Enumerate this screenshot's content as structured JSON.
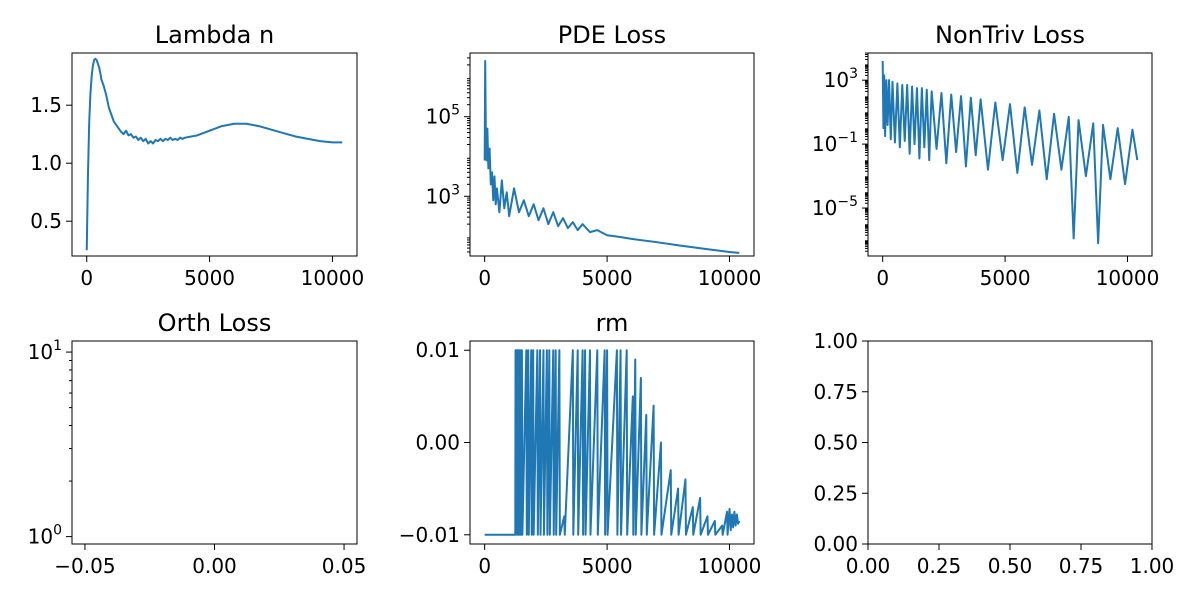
{
  "chart_data": [
    {
      "id": "lambda",
      "type": "line",
      "title": "Lambda n",
      "xlabel": "",
      "ylabel": "",
      "xlim": [
        -600,
        11000
      ],
      "ylim": [
        0.2,
        1.95
      ],
      "yscale": "linear",
      "xticks": [
        {
          "v": 0,
          "label": "0"
        },
        {
          "v": 5000,
          "label": "5000"
        },
        {
          "v": 10000,
          "label": "10000"
        }
      ],
      "yticks": [
        {
          "v": 0.5,
          "label": "0.5"
        },
        {
          "v": 1.0,
          "label": "1.0"
        },
        {
          "v": 1.5,
          "label": "1.5"
        }
      ],
      "series": [
        {
          "x": [
            0,
            50,
            100,
            150,
            200,
            250,
            300,
            350,
            400,
            450,
            500,
            550,
            600,
            700,
            800,
            900,
            1000,
            1100,
            1200,
            1300,
            1400,
            1500,
            1600,
            1700,
            1800,
            1900,
            2000,
            2100,
            2200,
            2300,
            2400,
            2500,
            2600,
            2700,
            2800,
            2900,
            3000,
            3100,
            3200,
            3300,
            3400,
            3500,
            3600,
            3700,
            3800,
            3900,
            4000,
            4500,
            5000,
            5500,
            6000,
            6500,
            7000,
            7500,
            8000,
            8500,
            9000,
            9500,
            10000,
            10400
          ],
          "y": [
            0.25,
            0.9,
            1.35,
            1.6,
            1.75,
            1.84,
            1.89,
            1.9,
            1.89,
            1.86,
            1.83,
            1.78,
            1.72,
            1.66,
            1.58,
            1.48,
            1.42,
            1.36,
            1.33,
            1.3,
            1.27,
            1.25,
            1.28,
            1.24,
            1.25,
            1.22,
            1.23,
            1.2,
            1.22,
            1.19,
            1.21,
            1.17,
            1.19,
            1.17,
            1.2,
            1.19,
            1.21,
            1.19,
            1.21,
            1.2,
            1.22,
            1.2,
            1.21,
            1.2,
            1.22,
            1.21,
            1.22,
            1.24,
            1.28,
            1.32,
            1.34,
            1.34,
            1.32,
            1.29,
            1.26,
            1.23,
            1.21,
            1.19,
            1.18,
            1.18
          ]
        }
      ]
    },
    {
      "id": "pde",
      "type": "line",
      "title": "PDE Loss",
      "xlabel": "",
      "ylabel": "",
      "xlim": [
        -600,
        11000
      ],
      "ylim": [
        1.5,
        6.6
      ],
      "yscale": "log",
      "xticks": [
        {
          "v": 0,
          "label": "0"
        },
        {
          "v": 5000,
          "label": "5000"
        },
        {
          "v": 10000,
          "label": "10000"
        }
      ],
      "yticks": [
        {
          "v": 3,
          "label": "10",
          "exp": "3"
        },
        {
          "v": 5,
          "label": "10",
          "exp": "5"
        }
      ],
      "series": [
        {
          "x": [
            0,
            20,
            50,
            80,
            110,
            150,
            200,
            250,
            300,
            350,
            400,
            450,
            500,
            600,
            700,
            800,
            900,
            1000,
            1200,
            1400,
            1600,
            1800,
            2000,
            2200,
            2400,
            2600,
            2800,
            3000,
            3200,
            3400,
            3600,
            3800,
            4000,
            4300,
            4600,
            5000,
            5500,
            6000,
            7000,
            8000,
            9000,
            10000,
            10400
          ],
          "y": [
            3.9,
            6.4,
            4.4,
            3.9,
            4.7,
            3.7,
            4.2,
            3.3,
            3.6,
            2.9,
            3.5,
            2.8,
            3.2,
            2.6,
            3.4,
            2.7,
            3.1,
            2.5,
            3.2,
            2.6,
            2.9,
            2.5,
            2.8,
            2.4,
            2.7,
            2.3,
            2.6,
            2.25,
            2.45,
            2.2,
            2.35,
            2.15,
            2.3,
            2.1,
            2.15,
            2.02,
            1.98,
            1.93,
            1.85,
            1.76,
            1.68,
            1.6,
            1.58
          ]
        }
      ]
    },
    {
      "id": "nontriv",
      "type": "line",
      "title": "NonTriv Loss",
      "xlabel": "",
      "ylabel": "",
      "xlim": [
        -600,
        11000
      ],
      "ylim": [
        -8.0,
        4.7
      ],
      "yscale": "log",
      "xticks": [
        {
          "v": 0,
          "label": "0"
        },
        {
          "v": 5000,
          "label": "5000"
        },
        {
          "v": 10000,
          "label": "10000"
        }
      ],
      "yticks": [
        {
          "v": -5,
          "label": "10",
          "exp": "−5"
        },
        {
          "v": -1,
          "label": "10",
          "exp": "−1"
        },
        {
          "v": 3,
          "label": "10",
          "exp": "3"
        }
      ],
      "series": [
        {
          "x": [
            0,
            30,
            60,
            100,
            150,
            200,
            260,
            330,
            400,
            500,
            600,
            700,
            800,
            900,
            1000,
            1100,
            1200,
            1300,
            1400,
            1500,
            1600,
            1700,
            1800,
            1900,
            2000,
            2200,
            2400,
            2600,
            2800,
            3000,
            3200,
            3400,
            3600,
            3800,
            4000,
            4300,
            4600,
            4900,
            5200,
            5500,
            5800,
            6100,
            6400,
            6700,
            7000,
            7300,
            7600,
            7800,
            8000,
            8300,
            8600,
            8800,
            9000,
            9300,
            9600,
            9900,
            10200,
            10400
          ],
          "y": [
            4.2,
            0.0,
            3.3,
            -0.5,
            3.0,
            0.2,
            3.0,
            -0.7,
            2.9,
            -0.9,
            2.8,
            -1.2,
            2.7,
            -0.8,
            2.7,
            -1.6,
            2.6,
            -1.0,
            2.5,
            -1.9,
            2.5,
            -1.2,
            2.4,
            -2.0,
            2.3,
            -1.3,
            2.2,
            -2.2,
            2.1,
            -1.5,
            2.0,
            -2.4,
            1.9,
            -1.7,
            1.8,
            -2.6,
            1.6,
            -2.0,
            1.5,
            -2.8,
            1.3,
            -2.3,
            1.1,
            -3.2,
            0.9,
            -2.6,
            0.7,
            -6.9,
            0.5,
            -3.0,
            0.3,
            -7.2,
            0.2,
            -3.2,
            0.0,
            -3.5,
            -0.1,
            -2.0
          ]
        }
      ]
    },
    {
      "id": "orth",
      "type": "line",
      "title": "Orth Loss",
      "xlabel": "",
      "ylabel": "",
      "xlim": [
        -0.055,
        0.055
      ],
      "ylim": [
        -0.04,
        1.06
      ],
      "yscale": "log",
      "xticks": [
        {
          "v": -0.05,
          "label": "−0.05"
        },
        {
          "v": 0.0,
          "label": "0.00"
        },
        {
          "v": 0.05,
          "label": "0.05"
        }
      ],
      "yticks": [
        {
          "v": 0,
          "label": "10",
          "exp": "0"
        },
        {
          "v": 1,
          "label": "10",
          "exp": "1"
        }
      ],
      "series": []
    },
    {
      "id": "rm",
      "type": "line",
      "title": "rm",
      "xlabel": "",
      "ylabel": "",
      "xlim": [
        -600,
        11000
      ],
      "ylim": [
        -0.011,
        0.011
      ],
      "yscale": "linear",
      "xticks": [
        {
          "v": 0,
          "label": "0"
        },
        {
          "v": 5000,
          "label": "5000"
        },
        {
          "v": 10000,
          "label": "10000"
        }
      ],
      "yticks": [
        {
          "v": -0.01,
          "label": "−0.01"
        },
        {
          "v": 0.0,
          "label": "0.00"
        },
        {
          "v": 0.01,
          "label": "0.01"
        }
      ],
      "series": [
        {
          "x": [
            0,
            1250,
            1260,
            1280,
            1300,
            1320,
            1340,
            1360,
            1380,
            1400,
            1420,
            1460,
            1480,
            1520,
            1540,
            1700,
            1720,
            1780,
            1800,
            1900,
            1920,
            1980,
            2000,
            2150,
            2170,
            2260,
            2280,
            2400,
            2420,
            2540,
            2560,
            2640,
            2660,
            2800,
            2820,
            2900,
            2920,
            3050,
            3070,
            3250,
            3270,
            3600,
            3620,
            3800,
            3820,
            4000,
            4020,
            4100,
            4120,
            4300,
            4320,
            4600,
            4620,
            4900,
            4920,
            5000,
            5020,
            5400,
            5420,
            5550,
            5570,
            5800,
            5820,
            6050,
            6070,
            6150,
            6170,
            6380,
            6400,
            6600,
            6620,
            6900,
            6920,
            7200,
            7220,
            7600,
            7620,
            7900,
            7920,
            8200,
            8220,
            8500,
            8520,
            8800,
            8820,
            9100,
            9120,
            9400,
            9420,
            9700,
            9720,
            9900,
            9920,
            10000,
            10050,
            10100,
            10150,
            10200,
            10250,
            10300,
            10350,
            10400
          ],
          "y": [
            -0.01,
            -0.01,
            0.01,
            0.01,
            -0.01,
            0.01,
            -0.01,
            0.01,
            -0.01,
            0.01,
            -0.01,
            0.01,
            -0.01,
            0.01,
            -0.01,
            0.01,
            -0.01,
            0.01,
            -0.01,
            0.01,
            -0.01,
            0.01,
            -0.01,
            0.01,
            -0.01,
            0.01,
            -0.01,
            0.01,
            -0.01,
            0.01,
            -0.01,
            0.01,
            -0.01,
            0.01,
            -0.01,
            0.01,
            -0.01,
            0.01,
            -0.01,
            -0.008,
            -0.01,
            0.01,
            -0.01,
            0.01,
            -0.01,
            0.01,
            -0.01,
            0.01,
            -0.01,
            0.01,
            -0.01,
            0.01,
            -0.01,
            0.01,
            -0.01,
            0.01,
            -0.01,
            0.01,
            -0.01,
            0.01,
            -0.01,
            0.01,
            -0.01,
            0.005,
            -0.01,
            0.009,
            -0.01,
            0.007,
            -0.01,
            0.003,
            -0.01,
            0.004,
            -0.01,
            0.0,
            -0.01,
            -0.003,
            -0.01,
            -0.005,
            -0.01,
            -0.004,
            -0.01,
            -0.007,
            -0.01,
            -0.006,
            -0.01,
            -0.008,
            -0.01,
            -0.0085,
            -0.01,
            -0.009,
            -0.01,
            -0.0075,
            -0.01,
            -0.0072,
            -0.0095,
            -0.0078,
            -0.0092,
            -0.0075,
            -0.009,
            -0.0078,
            -0.0088,
            -0.0085
          ]
        }
      ]
    },
    {
      "id": "empty",
      "type": "line",
      "title": "",
      "xlabel": "",
      "ylabel": "",
      "xlim": [
        0,
        1
      ],
      "ylim": [
        0,
        1
      ],
      "yscale": "linear",
      "xticks": [
        {
          "v": 0,
          "label": "0.00"
        },
        {
          "v": 0.25,
          "label": "0.25"
        },
        {
          "v": 0.5,
          "label": "0.50"
        },
        {
          "v": 0.75,
          "label": "0.75"
        },
        {
          "v": 1,
          "label": "1.00"
        }
      ],
      "yticks": [
        {
          "v": 0,
          "label": "0.00"
        },
        {
          "v": 0.25,
          "label": "0.25"
        },
        {
          "v": 0.5,
          "label": "0.50"
        },
        {
          "v": 0.75,
          "label": "0.75"
        },
        {
          "v": 1,
          "label": "1.00"
        }
      ],
      "series": []
    }
  ]
}
